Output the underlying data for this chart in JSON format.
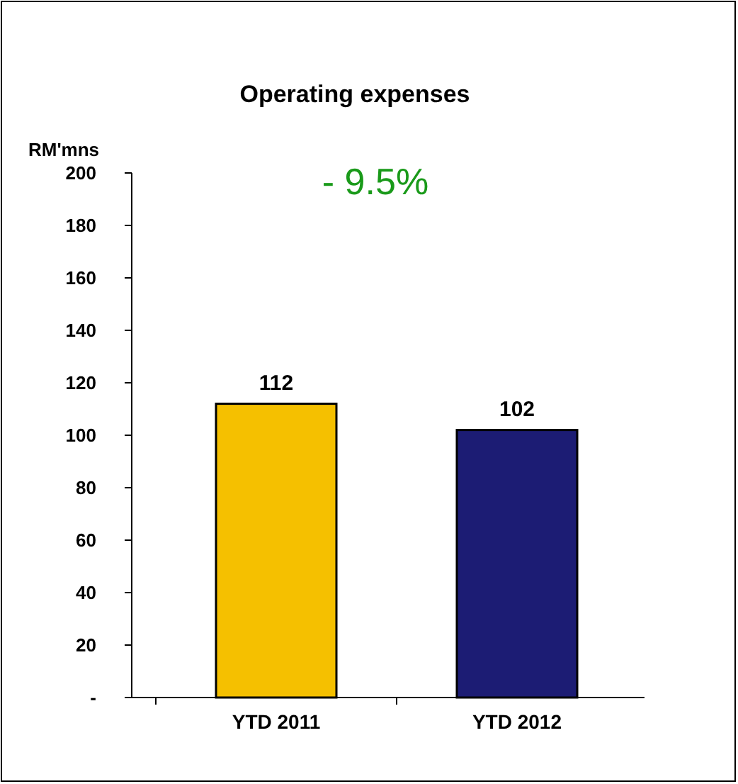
{
  "chart_data": {
    "type": "bar",
    "title": "Operating expenses",
    "ylabel": "RM'mns",
    "annotations": [
      "- 9.5%"
    ],
    "categories": [
      "YTD 2011",
      "YTD 2012"
    ],
    "values": [
      112,
      102
    ],
    "colors": [
      "#f5c000",
      "#1c1c74"
    ],
    "ylim": [
      0,
      200
    ],
    "yticks": [
      {
        "value": 0,
        "label": "-"
      },
      20,
      40,
      60,
      80,
      100,
      120,
      140,
      160,
      180,
      200
    ],
    "data_labels": true,
    "grid": false
  }
}
